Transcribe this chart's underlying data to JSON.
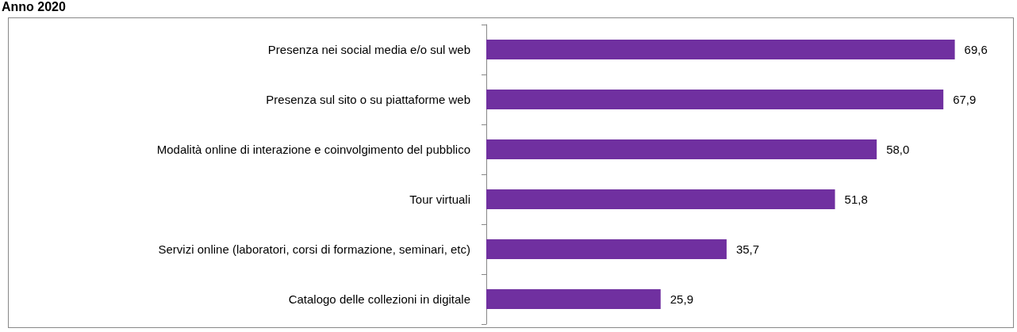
{
  "chart_data": {
    "type": "bar",
    "orientation": "horizontal",
    "title": "Anno 2020",
    "categories": [
      "Presenza nei social media e/o sul web",
      "Presenza sul sito o su piattaforme web",
      "Modalità online di interazione e coinvolgimento del pubblico",
      "Tour virtuali",
      "Servizi online (laboratori, corsi di formazione, seminari, etc)",
      "Catalogo delle collezioni in digitale"
    ],
    "values": [
      69.6,
      67.9,
      58.0,
      51.8,
      35.7,
      25.9
    ],
    "value_labels": [
      "69,6",
      "67,9",
      "58,0",
      "51,8",
      "35,7",
      "25,9"
    ],
    "color": "#7030a0",
    "tick_labels": "y"
  }
}
